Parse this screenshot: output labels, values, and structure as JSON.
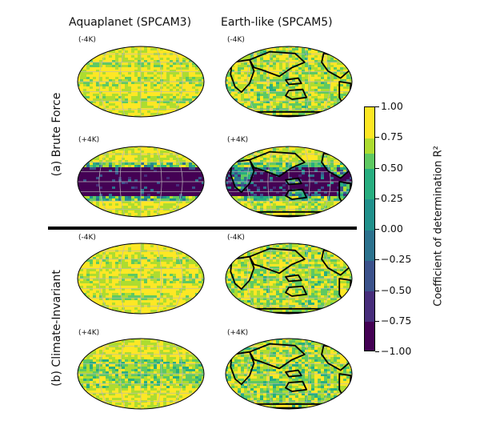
{
  "figure": {
    "col_titles": [
      "Aquaplanet (SPCAM3)",
      "Earth-like (SPCAM5)"
    ],
    "row_titles": [
      "(a) Brute Force",
      "(b) Climate-Invariant"
    ],
    "panel_labels": [
      "(-4K)",
      "(-4K)",
      "(+4K)",
      "(+4K)",
      "(-4K)",
      "(-4K)",
      "(+4K)",
      "(+4K)"
    ]
  },
  "colors": {
    "levels": [
      "#440154",
      "#472d7b",
      "#3b528b",
      "#2c728e",
      "#21918c",
      "#28ae80",
      "#5ec962",
      "#addc30",
      "#fde725"
    ],
    "coastline": "#000000",
    "gridline": "#b8b8b8"
  },
  "chart_data": {
    "type": "heatmap",
    "projection": "Robinson",
    "colorbar": {
      "label": "Coefficient of determination R²",
      "range": [
        -1.0,
        1.0
      ],
      "tick_labels": [
        "1.00",
        "0.75",
        "0.50",
        "0.25",
        "0.00",
        "−0.25",
        "−0.50",
        "−0.75",
        "−1.00"
      ],
      "tick_values": [
        1.0,
        0.75,
        0.5,
        0.25,
        0.0,
        -0.25,
        -0.5,
        -0.75,
        -1.0
      ]
    },
    "panels": [
      {
        "row": "(a) Brute Force",
        "col": "Aquaplanet (SPCAM3)",
        "label": "(-4K)",
        "coastlines": false,
        "tropical_skill": "high, R² ≈ 0.7–1.0"
      },
      {
        "row": "(a) Brute Force",
        "col": "Earth-like (SPCAM5)",
        "label": "(-4K)",
        "coastlines": true,
        "tropical_skill": "mostly high with patchy 0.25–0.75 regions"
      },
      {
        "row": "(a) Brute Force",
        "col": "Aquaplanet (SPCAM3)",
        "label": "(+4K)",
        "coastlines": false,
        "tropical_skill": "very low, R² ≈ −1.0 across tropics"
      },
      {
        "row": "(a) Brute Force",
        "col": "Earth-like (SPCAM5)",
        "label": "(+4K)",
        "coastlines": true,
        "tropical_skill": "very low, R² ≈ −1.0 over tropical oceans"
      },
      {
        "row": "(b) Climate-Invariant",
        "col": "Aquaplanet (SPCAM3)",
        "label": "(-4K)",
        "coastlines": false,
        "tropical_skill": "high, R² ≈ 0.7–1.0"
      },
      {
        "row": "(b) Climate-Invariant",
        "col": "Earth-like (SPCAM5)",
        "label": "(-4K)",
        "coastlines": true,
        "tropical_skill": "mostly high, R² ≈ 0.6–1.0"
      },
      {
        "row": "(b) Climate-Invariant",
        "col": "Aquaplanet (SPCAM3)",
        "label": "(+4K)",
        "coastlines": false,
        "tropical_skill": "moderate to high, R² ≈ 0.5–1.0"
      },
      {
        "row": "(b) Climate-Invariant",
        "col": "Earth-like (SPCAM5)",
        "label": "(+4K)",
        "coastlines": true,
        "tropical_skill": "moderate to high, R² ≈ 0.5–1.0"
      }
    ]
  }
}
